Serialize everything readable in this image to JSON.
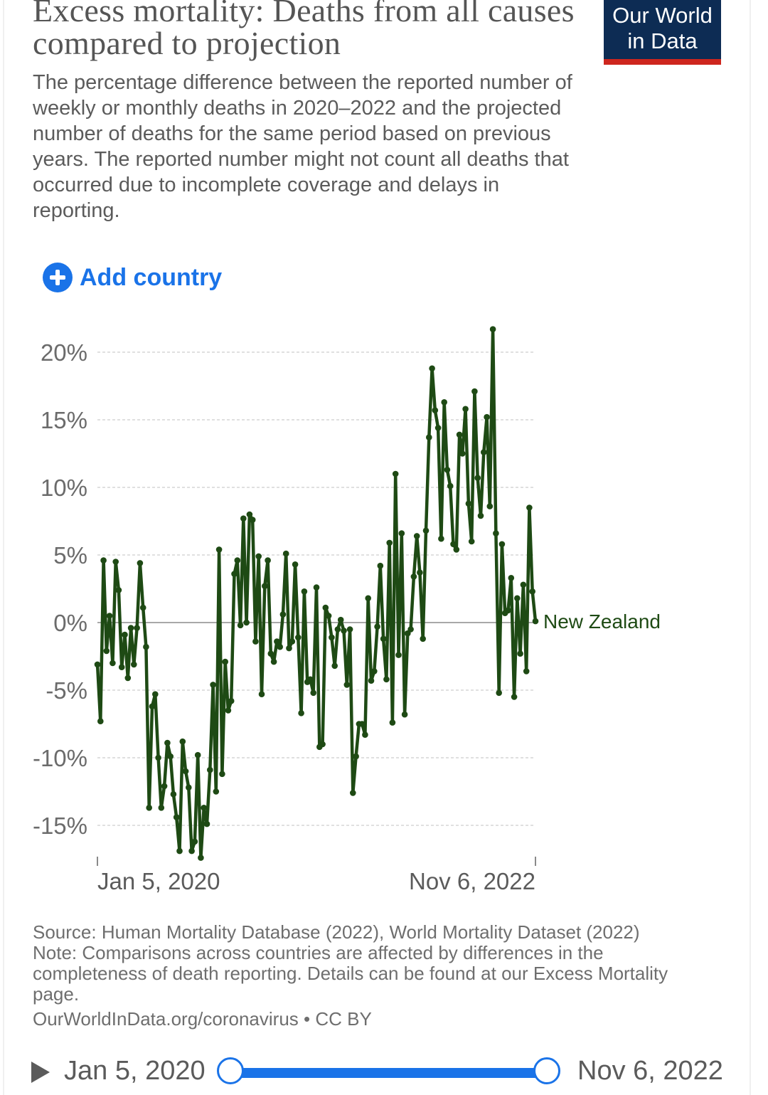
{
  "header": {
    "title": "Excess mortality: Deaths from all causes compared to projection",
    "subtitle": "The percentage difference between the reported number of weekly or monthly deaths in 2020–2022 and the projected number of deaths for the same period based on previous years. The reported number might not count all deaths that occurred due to incomplete coverage and delays in reporting.",
    "logo_line1": "Our World",
    "logo_line2": "in Data",
    "logo_colors": {
      "background": "#0d2c54",
      "stripe": "#ce261e"
    }
  },
  "controls": {
    "add_country_label": "Add country",
    "add_icon": "plus-circle-icon",
    "accent": "#1a73e8"
  },
  "chart_data": {
    "type": "line",
    "title": "Excess mortality: Deaths from all causes compared to projection",
    "xlabel": "",
    "ylabel": "",
    "x_range": [
      "Jan 5, 2020",
      "Nov 6, 2022"
    ],
    "x_tick_labels": [
      "Jan 5, 2020",
      "Nov 6, 2022"
    ],
    "y_ticks": [
      20,
      15,
      10,
      5,
      0,
      -5,
      -10,
      -15
    ],
    "y_tick_labels": [
      "20%",
      "15%",
      "10%",
      "5%",
      "0%",
      "-5%",
      "-10%",
      "-15%"
    ],
    "ylim": [
      -17.5,
      21.8
    ],
    "grid": true,
    "legend": "right, label at end of line",
    "series": [
      {
        "name": "New Zealand",
        "color": "#1e4a14",
        "x_step": "weekly",
        "values": [
          -3.1,
          -7.3,
          4.6,
          -2.1,
          0.5,
          -3.0,
          4.5,
          2.4,
          -3.3,
          -0.9,
          -4.1,
          -0.4,
          -3.1,
          -0.4,
          4.4,
          1.1,
          -1.8,
          -13.7,
          -6.2,
          -5.3,
          -10.0,
          -13.7,
          -12.1,
          -8.9,
          -9.9,
          -12.7,
          -14.4,
          -16.9,
          -8.8,
          -11.0,
          -12.2,
          -16.9,
          -16.2,
          -9.8,
          -17.4,
          -13.7,
          -14.9,
          -10.9,
          -4.6,
          -12.5,
          5.4,
          -11.2,
          -2.9,
          -6.5,
          -5.8,
          3.6,
          4.6,
          -0.2,
          7.7,
          0.0,
          8.0,
          7.6,
          -1.4,
          4.9,
          -5.3,
          2.7,
          4.6,
          -2.3,
          -2.9,
          -1.4,
          -1.8,
          0.6,
          5.1,
          -1.9,
          -1.4,
          4.3,
          -1.1,
          -6.7,
          2.3,
          -4.4,
          -4.2,
          -5.2,
          2.6,
          -9.2,
          -9.0,
          1.1,
          0.5,
          -1.1,
          -3.2,
          -0.5,
          0.2,
          -0.6,
          -4.6,
          -0.5,
          -12.6,
          -9.9,
          -7.5,
          -7.5,
          -8.3,
          1.8,
          -4.3,
          -3.6,
          -0.3,
          4.2,
          -1.2,
          -4.2,
          5.9,
          -7.4,
          11.0,
          -2.4,
          6.6,
          -6.8,
          -0.8,
          -0.5,
          3.4,
          6.4,
          3.7,
          -1.2,
          6.8,
          13.7,
          18.8,
          15.7,
          14.4,
          6.2,
          16.3,
          11.3,
          10.1,
          5.8,
          5.4,
          13.9,
          12.5,
          15.8,
          8.8,
          6.0,
          17.1,
          10.7,
          7.9,
          12.6,
          15.2,
          8.6,
          21.7,
          6.6,
          -5.2,
          5.8,
          0.7,
          0.9,
          3.3,
          -5.5,
          1.8,
          -2.3,
          2.8,
          -3.6,
          8.5,
          2.3,
          0.1
        ]
      }
    ]
  },
  "footer": {
    "source": "Source: Human Mortality Database (2022), World Mortality Dataset (2022)",
    "note": "Note: Comparisons across countries are affected by differences in the completeness of death reporting. Details can be found at our Excess Mortality page.",
    "url_license": "OurWorldInData.org/coronavirus • CC BY"
  },
  "timeline": {
    "play_icon": "play-icon",
    "start_label": "Jan 5, 2020",
    "end_label": "Nov 6, 2022"
  }
}
